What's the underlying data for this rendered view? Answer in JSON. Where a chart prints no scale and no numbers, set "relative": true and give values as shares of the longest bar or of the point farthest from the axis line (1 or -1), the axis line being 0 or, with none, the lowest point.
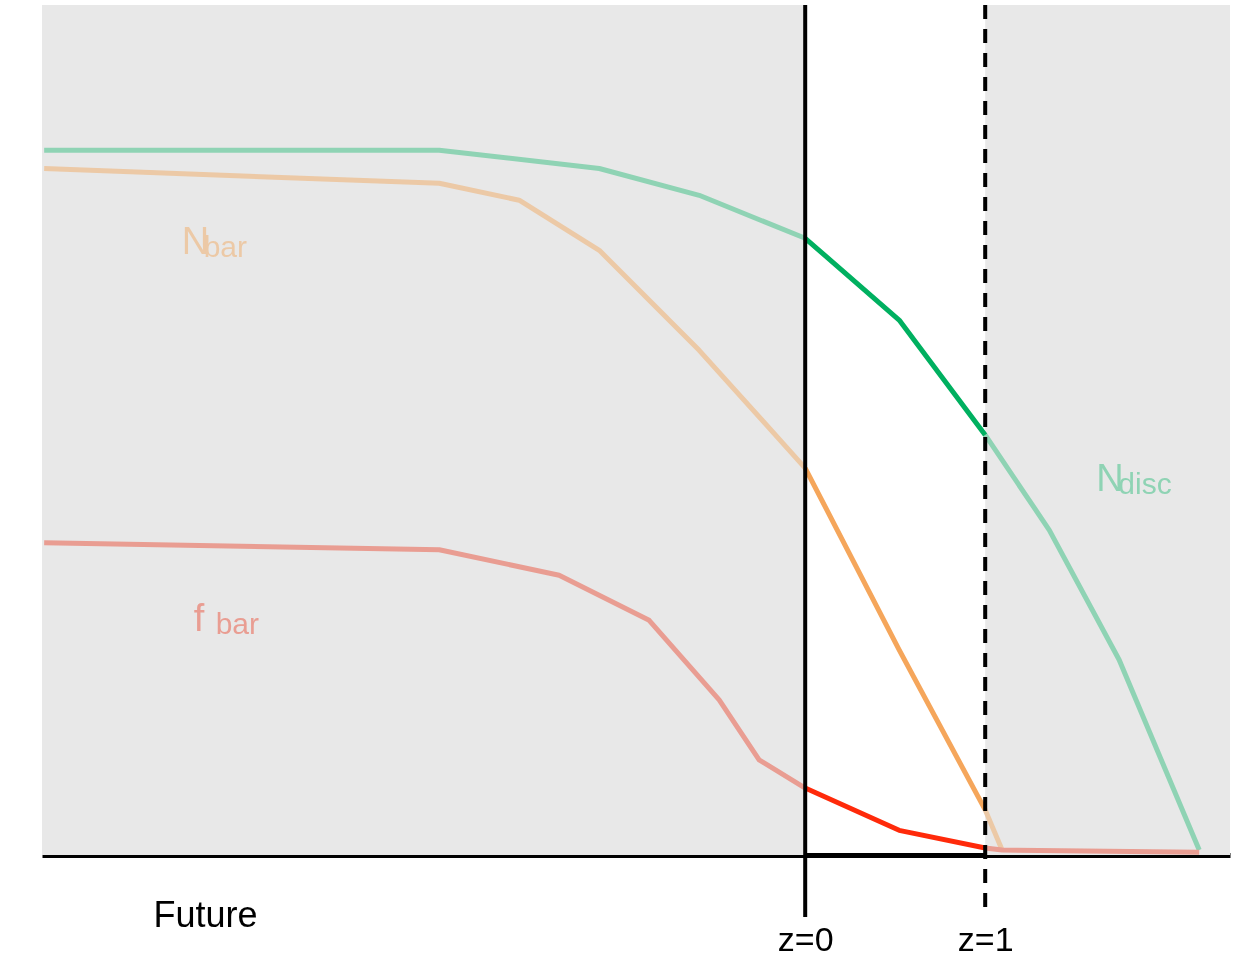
{
  "chart_data": {
    "type": "line",
    "relative": true,
    "xlabel": "Future",
    "xlim": [
      -4.24,
      2.36
    ],
    "xticks": [
      {
        "value": 0,
        "label": "z=0"
      },
      {
        "value": 1,
        "label": "z=1"
      }
    ],
    "marker": "none",
    "line_style": "solid",
    "series": [
      {
        "name": "N$_{disc}$",
        "color": "#8fd3b4",
        "x": [
          1,
          1.356,
          1.744,
          2.189
        ],
        "values": [
          0.596,
          0.461,
          0.277,
          0.007
        ]
      },
      {
        "color": "#8fd3b4",
        "x": [
          -4.228,
          -2.033,
          -1.144,
          -0.589,
          0
        ],
        "values": [
          1,
          1,
          0.974,
          0.936,
          0.875
        ]
      },
      {
        "color": "#00b060",
        "x": [
          0,
          0.522,
          1
        ],
        "values": [
          0.875,
          0.759,
          0.596
        ]
      },
      {
        "name": "N$_{bar}$",
        "color": "#ecc9a6",
        "x": [
          -4.228,
          -2.033,
          -1.589,
          -1.144,
          -0.589,
          0
        ],
        "values": [
          0.974,
          0.953,
          0.929,
          0.858,
          0.716,
          0.549
        ]
      },
      {
        "color": "#f5a65b",
        "x": [
          0,
          0.522,
          1
        ],
        "values": [
          0.549,
          0.291,
          0.064
        ]
      },
      {
        "color": "#ecc9a6",
        "x": [
          1,
          1.094
        ],
        "values": [
          0.064,
          0.007
        ]
      },
      {
        "name": "f$_{bar}$",
        "color": "#e99d92",
        "x": [
          -4.228,
          -2.033,
          -1.367,
          -0.867,
          -0.478,
          -0.256,
          0
        ],
        "values": [
          0.443,
          0.433,
          0.397,
          0.333,
          0.22,
          0.135,
          0.095
        ]
      },
      {
        "color": "#ff2a0a",
        "x": [
          0,
          0.522,
          1
        ],
        "values": [
          0.095,
          0.035,
          0.01
        ]
      },
      {
        "color": "#e99d92",
        "x": [
          1,
          1.094,
          2.189
        ],
        "values": [
          0.01,
          0.007,
          0.004
        ]
      }
    ],
    "bands": [
      {
        "axis": "x",
        "from": -4.24,
        "to": 0,
        "color": "#e8e8e8"
      },
      {
        "axis": "x",
        "from": 1,
        "to": 2.36,
        "color": "#e8e8e8"
      }
    ],
    "ref_lines": [
      {
        "axis": "x",
        "value": 0,
        "color": "#000000",
        "line_style": "solid"
      },
      {
        "axis": "x",
        "value": 1,
        "color": "#000000",
        "line_style": "dashed"
      }
    ]
  }
}
